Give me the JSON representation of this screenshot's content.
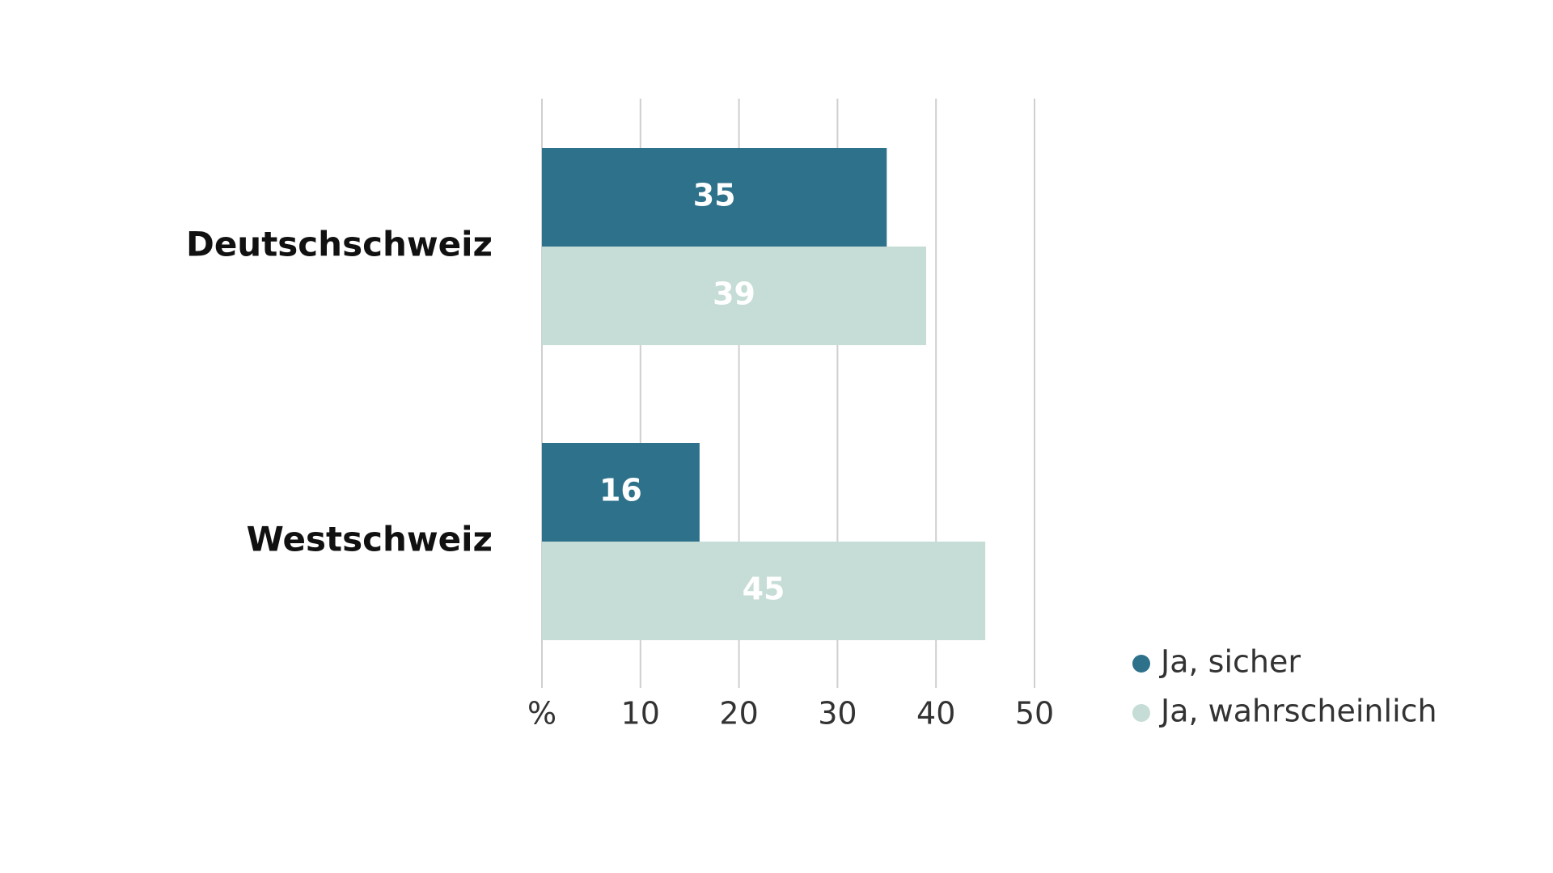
{
  "chart_data": {
    "type": "bar",
    "orientation": "horizontal",
    "categories": [
      "Deutschschweiz",
      "Westschweiz"
    ],
    "series": [
      {
        "name": "Ja, sicher",
        "color": "#2e718a",
        "values": [
          35,
          16
        ]
      },
      {
        "name": "Ja, wahrscheinlich",
        "color": "#c5ddd6",
        "values": [
          39,
          45
        ]
      }
    ],
    "xlim": [
      0,
      50
    ],
    "xticks": [
      {
        "value": 0,
        "label": "%"
      },
      10,
      20,
      30,
      40,
      50
    ],
    "grid": true,
    "legend": "bottom-right"
  }
}
